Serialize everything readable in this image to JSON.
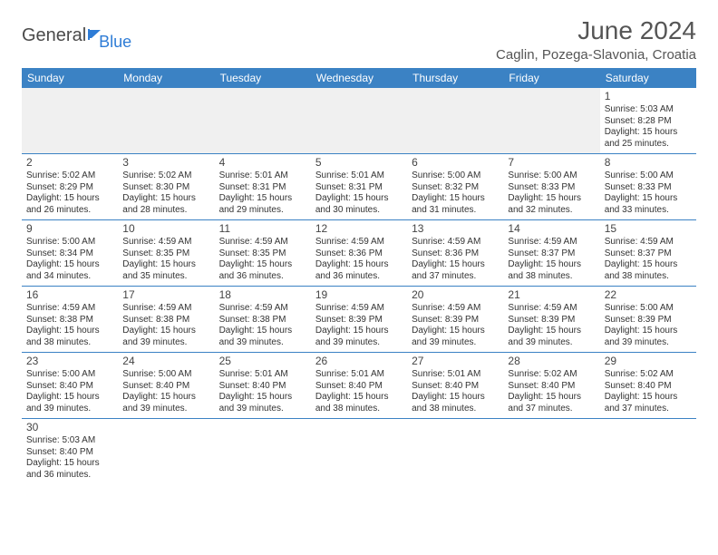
{
  "logo": {
    "main": "General",
    "sub": "Blue"
  },
  "title": "June 2024",
  "location": "Caglin, Pozega-Slavonia, Croatia",
  "colors": {
    "header_bg": "#3b82c4",
    "header_text": "#ffffff",
    "border": "#3b82c4",
    "blank_bg": "#f0f0f0",
    "title_color": "#555555",
    "logo_main": "#4a4a4a",
    "logo_sub": "#2e7cd6"
  },
  "dayHeaders": [
    "Sunday",
    "Monday",
    "Tuesday",
    "Wednesday",
    "Thursday",
    "Friday",
    "Saturday"
  ],
  "weeks": [
    [
      {
        "blank": true
      },
      {
        "blank": true
      },
      {
        "blank": true
      },
      {
        "blank": true
      },
      {
        "blank": true
      },
      {
        "blank": true
      },
      {
        "day": "1",
        "sunrise": "Sunrise: 5:03 AM",
        "sunset": "Sunset: 8:28 PM",
        "daylight": "Daylight: 15 hours and 25 minutes."
      }
    ],
    [
      {
        "day": "2",
        "sunrise": "Sunrise: 5:02 AM",
        "sunset": "Sunset: 8:29 PM",
        "daylight": "Daylight: 15 hours and 26 minutes."
      },
      {
        "day": "3",
        "sunrise": "Sunrise: 5:02 AM",
        "sunset": "Sunset: 8:30 PM",
        "daylight": "Daylight: 15 hours and 28 minutes."
      },
      {
        "day": "4",
        "sunrise": "Sunrise: 5:01 AM",
        "sunset": "Sunset: 8:31 PM",
        "daylight": "Daylight: 15 hours and 29 minutes."
      },
      {
        "day": "5",
        "sunrise": "Sunrise: 5:01 AM",
        "sunset": "Sunset: 8:31 PM",
        "daylight": "Daylight: 15 hours and 30 minutes."
      },
      {
        "day": "6",
        "sunrise": "Sunrise: 5:00 AM",
        "sunset": "Sunset: 8:32 PM",
        "daylight": "Daylight: 15 hours and 31 minutes."
      },
      {
        "day": "7",
        "sunrise": "Sunrise: 5:00 AM",
        "sunset": "Sunset: 8:33 PM",
        "daylight": "Daylight: 15 hours and 32 minutes."
      },
      {
        "day": "8",
        "sunrise": "Sunrise: 5:00 AM",
        "sunset": "Sunset: 8:33 PM",
        "daylight": "Daylight: 15 hours and 33 minutes."
      }
    ],
    [
      {
        "day": "9",
        "sunrise": "Sunrise: 5:00 AM",
        "sunset": "Sunset: 8:34 PM",
        "daylight": "Daylight: 15 hours and 34 minutes."
      },
      {
        "day": "10",
        "sunrise": "Sunrise: 4:59 AM",
        "sunset": "Sunset: 8:35 PM",
        "daylight": "Daylight: 15 hours and 35 minutes."
      },
      {
        "day": "11",
        "sunrise": "Sunrise: 4:59 AM",
        "sunset": "Sunset: 8:35 PM",
        "daylight": "Daylight: 15 hours and 36 minutes."
      },
      {
        "day": "12",
        "sunrise": "Sunrise: 4:59 AM",
        "sunset": "Sunset: 8:36 PM",
        "daylight": "Daylight: 15 hours and 36 minutes."
      },
      {
        "day": "13",
        "sunrise": "Sunrise: 4:59 AM",
        "sunset": "Sunset: 8:36 PM",
        "daylight": "Daylight: 15 hours and 37 minutes."
      },
      {
        "day": "14",
        "sunrise": "Sunrise: 4:59 AM",
        "sunset": "Sunset: 8:37 PM",
        "daylight": "Daylight: 15 hours and 38 minutes."
      },
      {
        "day": "15",
        "sunrise": "Sunrise: 4:59 AM",
        "sunset": "Sunset: 8:37 PM",
        "daylight": "Daylight: 15 hours and 38 minutes."
      }
    ],
    [
      {
        "day": "16",
        "sunrise": "Sunrise: 4:59 AM",
        "sunset": "Sunset: 8:38 PM",
        "daylight": "Daylight: 15 hours and 38 minutes."
      },
      {
        "day": "17",
        "sunrise": "Sunrise: 4:59 AM",
        "sunset": "Sunset: 8:38 PM",
        "daylight": "Daylight: 15 hours and 39 minutes."
      },
      {
        "day": "18",
        "sunrise": "Sunrise: 4:59 AM",
        "sunset": "Sunset: 8:38 PM",
        "daylight": "Daylight: 15 hours and 39 minutes."
      },
      {
        "day": "19",
        "sunrise": "Sunrise: 4:59 AM",
        "sunset": "Sunset: 8:39 PM",
        "daylight": "Daylight: 15 hours and 39 minutes."
      },
      {
        "day": "20",
        "sunrise": "Sunrise: 4:59 AM",
        "sunset": "Sunset: 8:39 PM",
        "daylight": "Daylight: 15 hours and 39 minutes."
      },
      {
        "day": "21",
        "sunrise": "Sunrise: 4:59 AM",
        "sunset": "Sunset: 8:39 PM",
        "daylight": "Daylight: 15 hours and 39 minutes."
      },
      {
        "day": "22",
        "sunrise": "Sunrise: 5:00 AM",
        "sunset": "Sunset: 8:39 PM",
        "daylight": "Daylight: 15 hours and 39 minutes."
      }
    ],
    [
      {
        "day": "23",
        "sunrise": "Sunrise: 5:00 AM",
        "sunset": "Sunset: 8:40 PM",
        "daylight": "Daylight: 15 hours and 39 minutes."
      },
      {
        "day": "24",
        "sunrise": "Sunrise: 5:00 AM",
        "sunset": "Sunset: 8:40 PM",
        "daylight": "Daylight: 15 hours and 39 minutes."
      },
      {
        "day": "25",
        "sunrise": "Sunrise: 5:01 AM",
        "sunset": "Sunset: 8:40 PM",
        "daylight": "Daylight: 15 hours and 39 minutes."
      },
      {
        "day": "26",
        "sunrise": "Sunrise: 5:01 AM",
        "sunset": "Sunset: 8:40 PM",
        "daylight": "Daylight: 15 hours and 38 minutes."
      },
      {
        "day": "27",
        "sunrise": "Sunrise: 5:01 AM",
        "sunset": "Sunset: 8:40 PM",
        "daylight": "Daylight: 15 hours and 38 minutes."
      },
      {
        "day": "28",
        "sunrise": "Sunrise: 5:02 AM",
        "sunset": "Sunset: 8:40 PM",
        "daylight": "Daylight: 15 hours and 37 minutes."
      },
      {
        "day": "29",
        "sunrise": "Sunrise: 5:02 AM",
        "sunset": "Sunset: 8:40 PM",
        "daylight": "Daylight: 15 hours and 37 minutes."
      }
    ],
    [
      {
        "day": "30",
        "sunrise": "Sunrise: 5:03 AM",
        "sunset": "Sunset: 8:40 PM",
        "daylight": "Daylight: 15 hours and 36 minutes."
      },
      {
        "empty": true
      },
      {
        "empty": true
      },
      {
        "empty": true
      },
      {
        "empty": true
      },
      {
        "empty": true
      },
      {
        "empty": true
      }
    ]
  ]
}
